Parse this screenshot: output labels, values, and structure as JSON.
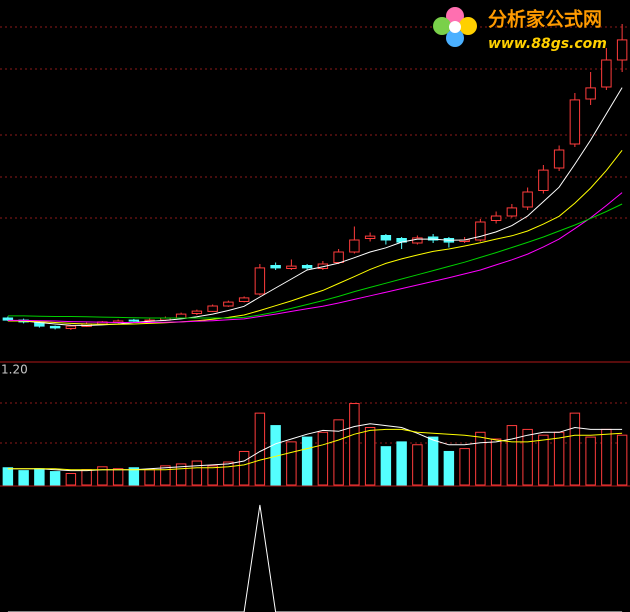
{
  "logo": {
    "title": "分析家公式网",
    "url": "www.88gs.com"
  },
  "chart_data": [
    {
      "type": "candlestick",
      "ylim": [
        0,
        12
      ],
      "up_color": "#ff3c3c",
      "down_color": "#54ffff",
      "open": [
        1.4,
        1.33,
        1.25,
        1.12,
        1.05,
        1.12,
        1.2,
        1.25,
        1.33,
        1.3,
        1.33,
        1.4,
        1.55,
        1.62,
        1.8,
        1.95,
        2.2,
        3.15,
        3.05,
        3.15,
        3.05,
        3.25,
        3.6,
        4.05,
        4.15,
        4.05,
        3.9,
        4.1,
        4.05,
        3.95,
        4.0,
        4.65,
        4.8,
        5.1,
        5.65,
        6.4,
        7.2,
        8.7,
        9.1,
        10.0
      ],
      "high": [
        1.45,
        1.38,
        1.3,
        1.15,
        1.17,
        1.25,
        1.3,
        1.35,
        1.37,
        1.38,
        1.45,
        1.58,
        1.68,
        1.85,
        1.98,
        2.12,
        3.2,
        3.25,
        3.35,
        3.2,
        3.3,
        3.7,
        4.45,
        4.25,
        4.2,
        4.1,
        4.15,
        4.2,
        4.1,
        4.1,
        4.7,
        4.95,
        5.2,
        5.75,
        6.5,
        7.15,
        8.9,
        9.6,
        10.4,
        11.2
      ],
      "low": [
        1.3,
        1.22,
        1.08,
        1.02,
        1.0,
        1.1,
        1.17,
        1.22,
        1.27,
        1.27,
        1.3,
        1.37,
        1.5,
        1.6,
        1.77,
        1.92,
        2.15,
        3.0,
        3.0,
        3.0,
        3.0,
        3.2,
        3.55,
        3.95,
        3.85,
        3.7,
        3.85,
        3.9,
        3.75,
        3.9,
        3.95,
        4.55,
        4.75,
        5.0,
        5.55,
        6.3,
        7.1,
        8.5,
        9.0,
        9.6
      ],
      "close": [
        1.33,
        1.27,
        1.13,
        1.07,
        1.13,
        1.2,
        1.27,
        1.3,
        1.3,
        1.33,
        1.4,
        1.53,
        1.63,
        1.8,
        1.93,
        2.07,
        3.07,
        3.07,
        3.13,
        3.07,
        3.2,
        3.6,
        4.0,
        4.13,
        4.0,
        3.93,
        4.07,
        4.0,
        3.93,
        4.0,
        4.6,
        4.8,
        5.07,
        5.6,
        6.33,
        7.0,
        8.67,
        9.07,
        10.0,
        10.67
      ],
      "series": [
        {
          "color": "#ffffff",
          "values": [
            1.3,
            1.3,
            1.25,
            1.2,
            1.16,
            1.15,
            1.17,
            1.2,
            1.25,
            1.29,
            1.32,
            1.37,
            1.44,
            1.53,
            1.65,
            1.79,
            2.1,
            2.4,
            2.7,
            3.0,
            3.11,
            3.23,
            3.41,
            3.6,
            3.74,
            3.93,
            4.03,
            4.03,
            3.99,
            4.0,
            4.12,
            4.27,
            4.48,
            4.8,
            5.28,
            5.76,
            6.53,
            7.33,
            8.21,
            9.08
          ]
        },
        {
          "color": "#ffff00",
          "values": [
            1.3,
            1.3,
            1.28,
            1.25,
            1.22,
            1.2,
            1.19,
            1.19,
            1.2,
            1.22,
            1.24,
            1.27,
            1.31,
            1.36,
            1.42,
            1.5,
            1.65,
            1.81,
            1.97,
            2.15,
            2.32,
            2.55,
            2.78,
            3.02,
            3.22,
            3.37,
            3.5,
            3.62,
            3.7,
            3.8,
            3.91,
            4.03,
            4.14,
            4.3,
            4.53,
            4.79,
            5.23,
            5.73,
            6.32,
            6.99
          ]
        },
        {
          "color": "#ff00ff",
          "values": [
            1.32,
            1.32,
            1.31,
            1.3,
            1.28,
            1.27,
            1.26,
            1.25,
            1.25,
            1.25,
            1.26,
            1.27,
            1.29,
            1.31,
            1.34,
            1.37,
            1.45,
            1.53,
            1.62,
            1.71,
            1.79,
            1.9,
            2.02,
            2.14,
            2.26,
            2.38,
            2.5,
            2.62,
            2.74,
            2.87,
            3.0,
            3.17,
            3.34,
            3.53,
            3.77,
            4.03,
            4.38,
            4.74,
            5.15,
            5.58
          ]
        },
        {
          "color": "#00d000",
          "values": [
            1.47,
            1.47,
            1.46,
            1.45,
            1.45,
            1.44,
            1.43,
            1.42,
            1.41,
            1.4,
            1.4,
            1.4,
            1.4,
            1.4,
            1.4,
            1.42,
            1.5,
            1.6,
            1.72,
            1.85,
            1.98,
            2.12,
            2.28,
            2.42,
            2.56,
            2.7,
            2.84,
            2.98,
            3.12,
            3.26,
            3.42,
            3.58,
            3.75,
            3.92,
            4.1,
            4.3,
            4.5,
            4.72,
            4.95,
            5.2
          ]
        }
      ]
    },
    {
      "type": "bar",
      "ylim": [
        0,
        1.2
      ],
      "yticks": [
        {
          "value": 1.2,
          "label": "1.20"
        }
      ],
      "values": [
        0.18,
        0.15,
        0.17,
        0.14,
        0.12,
        0.16,
        0.19,
        0.17,
        0.18,
        0.16,
        0.2,
        0.22,
        0.25,
        0.2,
        0.24,
        0.35,
        0.75,
        0.62,
        0.45,
        0.5,
        0.55,
        0.68,
        0.85,
        0.6,
        0.4,
        0.45,
        0.42,
        0.5,
        0.35,
        0.38,
        0.55,
        0.48,
        0.62,
        0.58,
        0.52,
        0.55,
        0.75,
        0.5,
        0.58,
        0.52
      ],
      "series": [
        {
          "color": "#ffffff",
          "values": [
            0.17,
            0.17,
            0.17,
            0.16,
            0.15,
            0.15,
            0.16,
            0.16,
            0.16,
            0.17,
            0.18,
            0.19,
            0.2,
            0.21,
            0.22,
            0.25,
            0.35,
            0.43,
            0.48,
            0.53,
            0.57,
            0.56,
            0.61,
            0.64,
            0.62,
            0.6,
            0.54,
            0.47,
            0.42,
            0.42,
            0.44,
            0.45,
            0.48,
            0.52,
            0.55,
            0.55,
            0.6,
            0.58,
            0.58,
            0.58
          ]
        },
        {
          "color": "#ffff00",
          "values": [
            0.17,
            0.17,
            0.17,
            0.17,
            0.16,
            0.16,
            0.16,
            0.16,
            0.16,
            0.16,
            0.16,
            0.17,
            0.18,
            0.18,
            0.19,
            0.21,
            0.26,
            0.3,
            0.34,
            0.38,
            0.42,
            0.47,
            0.53,
            0.57,
            0.58,
            0.58,
            0.55,
            0.54,
            0.53,
            0.52,
            0.5,
            0.47,
            0.45,
            0.45,
            0.47,
            0.49,
            0.52,
            0.52,
            0.53,
            0.54
          ]
        }
      ]
    },
    {
      "type": "line",
      "ylim": [
        0,
        1
      ],
      "series": [
        {
          "color": "#ffffff",
          "values": [
            0,
            0,
            0,
            0,
            0,
            0,
            0,
            0,
            0,
            0,
            0,
            0,
            0,
            0,
            0,
            0,
            1,
            0,
            0,
            0,
            0,
            0,
            0,
            0,
            0,
            0,
            0,
            0,
            0,
            0,
            0,
            0,
            0,
            0,
            0,
            0,
            0,
            0,
            0,
            0
          ]
        }
      ]
    }
  ]
}
